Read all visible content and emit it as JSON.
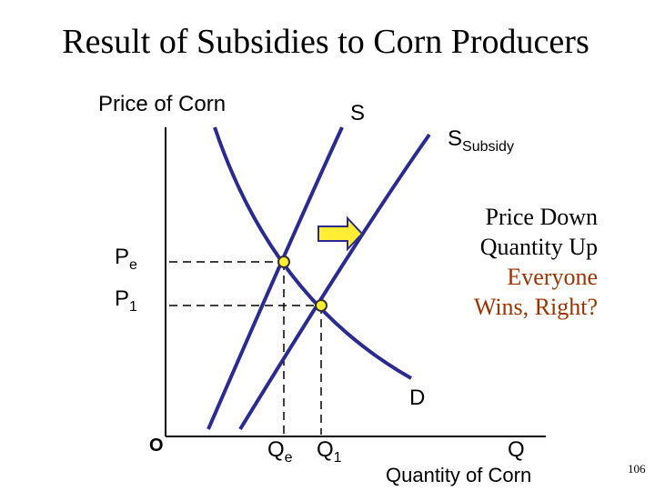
{
  "header": {
    "title": "Result of Subsidies to Corn Producers"
  },
  "axes": {
    "y_label": "Price of Corn",
    "x_label": "Quantity of Corn",
    "origin": "O",
    "x_end": "Q"
  },
  "curves": {
    "supply": "S",
    "subsidy": {
      "main": "S",
      "sub": "Subsidy"
    },
    "demand": "D"
  },
  "levels": {
    "pe": {
      "main": "P",
      "sub": "e"
    },
    "p1": {
      "main": "P",
      "sub": "1"
    },
    "qe": {
      "main": "Q",
      "sub": "e"
    },
    "q1": {
      "main": "Q",
      "sub": "1"
    }
  },
  "note": [
    "Price Down",
    "Quantity Up",
    "Everyone",
    "Wins, Right?"
  ],
  "page_number": "106"
}
